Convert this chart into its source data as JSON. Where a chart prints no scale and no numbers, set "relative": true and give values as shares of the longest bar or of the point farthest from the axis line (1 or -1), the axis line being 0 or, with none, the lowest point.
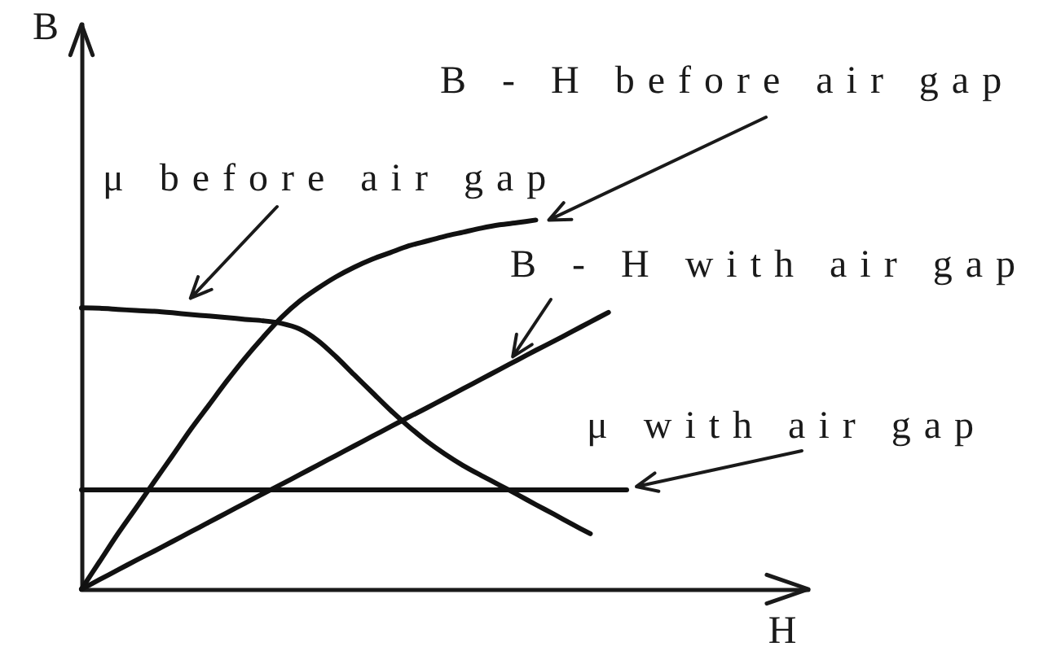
{
  "chart_data": {
    "type": "line",
    "xlabel": "H",
    "ylabel": "B",
    "relative": true,
    "marker": "none",
    "categories": [
      null,
      null,
      null,
      null,
      null,
      null,
      null,
      null,
      null,
      null,
      null,
      null,
      null,
      null,
      null,
      null,
      null,
      null,
      null,
      null,
      null,
      null,
      null,
      null,
      null,
      null,
      null,
      null,
      null,
      null,
      null,
      null,
      null,
      null,
      null,
      null,
      null,
      null,
      null,
      null,
      null
    ],
    "series": [
      {
        "name": "B - H before air gap",
        "color": "#111111",
        "values": [
          0,
          0.075,
          0.15,
          0.22,
          0.291,
          0.361,
          0.432,
          0.498,
          0.564,
          0.626,
          0.683,
          0.736,
          0.78,
          0.815,
          0.846,
          0.872,
          0.894,
          0.912,
          0.93,
          0.943,
          0.956,
          0.967,
          0.978,
          0.987,
          0.993,
          1,
          null,
          null,
          null,
          null,
          null,
          null,
          null,
          null,
          null,
          null,
          null,
          null,
          null,
          null,
          null
        ]
      },
      {
        "name": "B - H with air gap",
        "color": "#111111",
        "values": [
          0,
          0.026,
          0.052,
          0.078,
          0.103,
          0.129,
          0.155,
          0.181,
          0.207,
          0.233,
          0.259,
          0.284,
          0.31,
          0.336,
          0.362,
          0.388,
          0.414,
          0.44,
          0.466,
          0.491,
          0.517,
          0.543,
          0.569,
          0.595,
          0.621,
          0.647,
          0.672,
          0.698,
          0.724,
          0.75,
          null,
          null,
          null,
          null,
          null,
          null,
          null,
          null,
          null,
          null,
          null
        ]
      },
      {
        "name": "μ before air gap",
        "color": "#111111",
        "values": [
          0.762,
          0.761,
          0.758,
          0.755,
          0.753,
          0.749,
          0.744,
          0.74,
          0.736,
          0.731,
          0.727,
          0.72,
          0.705,
          0.674,
          0.63,
          0.581,
          0.533,
          0.485,
          0.441,
          0.401,
          0.366,
          0.335,
          0.308,
          0.282,
          0.256,
          0.229,
          0.203,
          0.176,
          0.15,
          null,
          null,
          null,
          null,
          null,
          null,
          null,
          null,
          null,
          null,
          null,
          null
        ]
      },
      {
        "name": "μ with air gap",
        "color": "#111111",
        "values": [
          0.269,
          0.269,
          0.269,
          0.269,
          0.269,
          0.269,
          0.269,
          0.269,
          0.269,
          0.269,
          0.269,
          0.269,
          0.269,
          0.269,
          0.269,
          0.269,
          0.269,
          0.269,
          0.269,
          0.269,
          0.269,
          0.269,
          0.269,
          0.269,
          0.269,
          0.269,
          0.269,
          0.269,
          0.269,
          0.269,
          0.269,
          null,
          null,
          null,
          null,
          null,
          null,
          null,
          null,
          null,
          null
        ]
      }
    ]
  }
}
